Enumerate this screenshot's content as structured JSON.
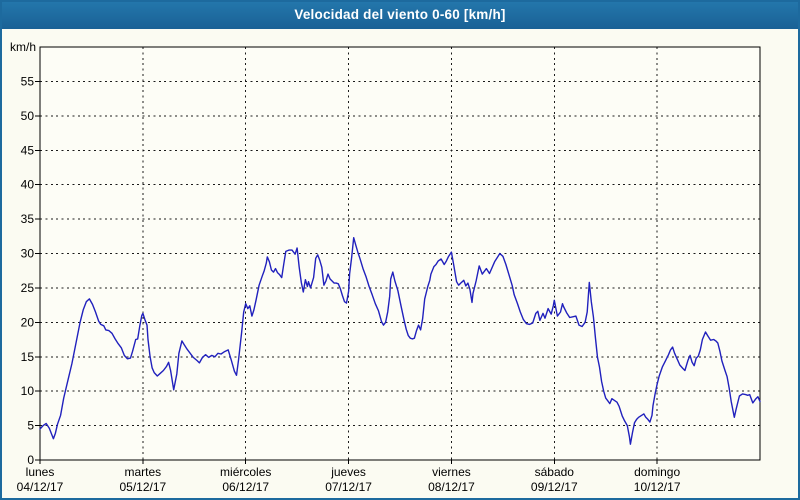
{
  "header": {
    "title": "Velocidad del viento 0-60 [km/h]"
  },
  "colors": {
    "titlebar_bg": "#1d6a9e",
    "titlebar_text": "#ffffff",
    "window_bg": "#fbfbf2",
    "plot_bg": "#fdfdf6",
    "grid": "#1a1a1a",
    "frame": "#000000",
    "label": "#000000",
    "line": "#2121bd"
  },
  "chart_data": {
    "type": "line",
    "title": "Velocidad del viento 0-60 [km/h]",
    "ylabel": "km/h",
    "xlabel": "",
    "ylim": [
      0,
      60
    ],
    "xlim_days": [
      0,
      7
    ],
    "grid": "dashed",
    "legend": "none",
    "y_ticks": [
      0,
      5,
      10,
      15,
      20,
      25,
      30,
      35,
      40,
      45,
      50,
      55
    ],
    "x_ticks": [
      {
        "day": "lunes",
        "date": "04/12/17"
      },
      {
        "day": "martes",
        "date": "05/12/17"
      },
      {
        "day": "miércoles",
        "date": "06/12/17"
      },
      {
        "day": "jueves",
        "date": "07/12/17"
      },
      {
        "day": "viernes",
        "date": "08/12/17"
      },
      {
        "day": "sábado",
        "date": "09/12/17"
      },
      {
        "day": "domingo",
        "date": "10/12/17"
      }
    ],
    "series": [
      {
        "name": "velocidad del viento (km/h)",
        "points": [
          [
            0,
            4.5
          ],
          [
            0.03,
            5.0
          ],
          [
            0.06,
            5.3
          ],
          [
            0.09,
            4.6
          ],
          [
            0.13,
            3.1
          ],
          [
            0.15,
            3.9
          ],
          [
            0.17,
            5.2
          ],
          [
            0.2,
            6.5
          ],
          [
            0.23,
            9.0
          ],
          [
            0.27,
            11.5
          ],
          [
            0.31,
            14.0
          ],
          [
            0.35,
            17.0
          ],
          [
            0.39,
            20.0
          ],
          [
            0.42,
            21.8
          ],
          [
            0.45,
            23.0
          ],
          [
            0.48,
            23.4
          ],
          [
            0.51,
            22.6
          ],
          [
            0.54,
            21.5
          ],
          [
            0.57,
            20.2
          ],
          [
            0.59,
            19.7
          ],
          [
            0.62,
            19.5
          ],
          [
            0.64,
            18.9
          ],
          [
            0.67,
            18.8
          ],
          [
            0.7,
            18.4
          ],
          [
            0.73,
            17.6
          ],
          [
            0.76,
            16.9
          ],
          [
            0.79,
            16.3
          ],
          [
            0.82,
            15.2
          ],
          [
            0.85,
            14.7
          ],
          [
            0.88,
            14.8
          ],
          [
            0.9,
            15.8
          ],
          [
            0.93,
            17.5
          ],
          [
            0.95,
            17.6
          ],
          [
            0.97,
            19.5
          ],
          [
            0.99,
            21.0
          ],
          [
            1.0,
            21.3
          ],
          [
            1.02,
            20.4
          ],
          [
            1.04,
            19.6
          ],
          [
            1.05,
            17.5
          ],
          [
            1.07,
            15.0
          ],
          [
            1.09,
            13.4
          ],
          [
            1.11,
            12.7
          ],
          [
            1.14,
            12.2
          ],
          [
            1.17,
            12.6
          ],
          [
            1.2,
            13.0
          ],
          [
            1.23,
            13.6
          ],
          [
            1.25,
            14.2
          ],
          [
            1.27,
            13.0
          ],
          [
            1.3,
            10.2
          ],
          [
            1.33,
            12.5
          ],
          [
            1.35,
            15.5
          ],
          [
            1.38,
            17.3
          ],
          [
            1.4,
            16.8
          ],
          [
            1.43,
            16.1
          ],
          [
            1.46,
            15.5
          ],
          [
            1.49,
            14.9
          ],
          [
            1.53,
            14.4
          ],
          [
            1.55,
            14.1
          ],
          [
            1.58,
            14.9
          ],
          [
            1.61,
            15.3
          ],
          [
            1.64,
            14.9
          ],
          [
            1.67,
            15.2
          ],
          [
            1.7,
            15.0
          ],
          [
            1.73,
            15.5
          ],
          [
            1.76,
            15.4
          ],
          [
            1.79,
            15.7
          ],
          [
            1.83,
            16.0
          ],
          [
            1.86,
            14.5
          ],
          [
            1.89,
            12.9
          ],
          [
            1.91,
            12.3
          ],
          [
            1.93,
            14.5
          ],
          [
            1.96,
            18.5
          ],
          [
            1.98,
            21.5
          ],
          [
            2.0,
            22.7
          ],
          [
            2.02,
            22.0
          ],
          [
            2.04,
            22.4
          ],
          [
            2.06,
            20.9
          ],
          [
            2.08,
            21.8
          ],
          [
            2.1,
            23.2
          ],
          [
            2.13,
            25.4
          ],
          [
            2.16,
            26.7
          ],
          [
            2.18,
            27.5
          ],
          [
            2.2,
            28.6
          ],
          [
            2.21,
            29.5
          ],
          [
            2.23,
            28.8
          ],
          [
            2.25,
            27.6
          ],
          [
            2.27,
            27.3
          ],
          [
            2.29,
            27.8
          ],
          [
            2.31,
            27.2
          ],
          [
            2.33,
            26.9
          ],
          [
            2.35,
            26.5
          ],
          [
            2.37,
            28.5
          ],
          [
            2.39,
            30.3
          ],
          [
            2.42,
            30.5
          ],
          [
            2.45,
            30.5
          ],
          [
            2.47,
            30.1
          ],
          [
            2.48,
            29.9
          ],
          [
            2.5,
            30.8
          ],
          [
            2.52,
            28.0
          ],
          [
            2.54,
            25.8
          ],
          [
            2.56,
            24.4
          ],
          [
            2.58,
            26.2
          ],
          [
            2.6,
            25.2
          ],
          [
            2.61,
            25.9
          ],
          [
            2.63,
            25.0
          ],
          [
            2.66,
            26.5
          ],
          [
            2.68,
            29.3
          ],
          [
            2.7,
            29.8
          ],
          [
            2.72,
            29.0
          ],
          [
            2.74,
            28.0
          ],
          [
            2.76,
            25.4
          ],
          [
            2.78,
            26.0
          ],
          [
            2.8,
            27.0
          ],
          [
            2.82,
            26.3
          ],
          [
            2.84,
            26.0
          ],
          [
            2.86,
            25.7
          ],
          [
            2.88,
            25.7
          ],
          [
            2.9,
            25.6
          ],
          [
            2.92,
            24.9
          ],
          [
            2.94,
            23.9
          ],
          [
            2.96,
            23.0
          ],
          [
            2.98,
            22.8
          ],
          [
            3.0,
            24.5
          ],
          [
            3.01,
            27.0
          ],
          [
            3.03,
            29.5
          ],
          [
            3.05,
            32.3
          ],
          [
            3.07,
            31.2
          ],
          [
            3.09,
            30.2
          ],
          [
            3.11,
            29.3
          ],
          [
            3.14,
            27.8
          ],
          [
            3.17,
            26.6
          ],
          [
            3.2,
            25.2
          ],
          [
            3.23,
            24.0
          ],
          [
            3.26,
            22.7
          ],
          [
            3.29,
            21.7
          ],
          [
            3.32,
            20.1
          ],
          [
            3.34,
            19.6
          ],
          [
            3.36,
            20.0
          ],
          [
            3.38,
            21.5
          ],
          [
            3.4,
            23.8
          ],
          [
            3.41,
            26.3
          ],
          [
            3.43,
            27.3
          ],
          [
            3.45,
            26.0
          ],
          [
            3.48,
            24.6
          ],
          [
            3.51,
            22.4
          ],
          [
            3.54,
            20.3
          ],
          [
            3.56,
            19.0
          ],
          [
            3.58,
            18.1
          ],
          [
            3.6,
            17.7
          ],
          [
            3.62,
            17.6
          ],
          [
            3.64,
            17.7
          ],
          [
            3.66,
            18.8
          ],
          [
            3.68,
            19.6
          ],
          [
            3.7,
            18.9
          ],
          [
            3.72,
            20.5
          ],
          [
            3.74,
            23.4
          ],
          [
            3.77,
            25.2
          ],
          [
            3.79,
            26.1
          ],
          [
            3.8,
            27.0
          ],
          [
            3.83,
            28.1
          ],
          [
            3.85,
            28.4
          ],
          [
            3.87,
            28.9
          ],
          [
            3.9,
            29.2
          ],
          [
            3.93,
            28.4
          ],
          [
            3.95,
            28.9
          ],
          [
            3.97,
            29.5
          ],
          [
            4.0,
            30.2
          ],
          [
            4.02,
            28.5
          ],
          [
            4.05,
            25.9
          ],
          [
            4.07,
            25.4
          ],
          [
            4.09,
            25.7
          ],
          [
            4.12,
            26.1
          ],
          [
            4.14,
            25.3
          ],
          [
            4.16,
            25.7
          ],
          [
            4.18,
            24.8
          ],
          [
            4.2,
            22.9
          ],
          [
            4.21,
            24.2
          ],
          [
            4.24,
            26.0
          ],
          [
            4.27,
            28.2
          ],
          [
            4.3,
            27.0
          ],
          [
            4.34,
            27.8
          ],
          [
            4.37,
            27.1
          ],
          [
            4.42,
            28.8
          ],
          [
            4.45,
            29.5
          ],
          [
            4.47,
            30.0
          ],
          [
            4.5,
            29.6
          ],
          [
            4.53,
            28.4
          ],
          [
            4.56,
            26.9
          ],
          [
            4.59,
            25.4
          ],
          [
            4.61,
            24.0
          ],
          [
            4.64,
            22.8
          ],
          [
            4.67,
            21.5
          ],
          [
            4.7,
            20.4
          ],
          [
            4.73,
            19.8
          ],
          [
            4.76,
            19.7
          ],
          [
            4.79,
            19.9
          ],
          [
            4.82,
            21.3
          ],
          [
            4.84,
            21.6
          ],
          [
            4.86,
            20.3
          ],
          [
            4.89,
            21.3
          ],
          [
            4.91,
            20.6
          ],
          [
            4.94,
            22.0
          ],
          [
            4.97,
            21.2
          ],
          [
            4.99,
            22.4
          ],
          [
            5.0,
            23.2
          ],
          [
            5.03,
            20.9
          ],
          [
            5.06,
            21.5
          ],
          [
            5.08,
            22.7
          ],
          [
            5.09,
            22.3
          ],
          [
            5.12,
            21.4
          ],
          [
            5.15,
            20.7
          ],
          [
            5.18,
            20.8
          ],
          [
            5.21,
            20.9
          ],
          [
            5.24,
            19.6
          ],
          [
            5.27,
            19.4
          ],
          [
            5.3,
            20.0
          ],
          [
            5.32,
            21.5
          ],
          [
            5.34,
            25.8
          ],
          [
            5.36,
            23.0
          ],
          [
            5.38,
            20.8
          ],
          [
            5.4,
            17.8
          ],
          [
            5.42,
            14.9
          ],
          [
            5.44,
            13.5
          ],
          [
            5.46,
            11.4
          ],
          [
            5.48,
            10.0
          ],
          [
            5.5,
            9.0
          ],
          [
            5.52,
            8.6
          ],
          [
            5.54,
            8.2
          ],
          [
            5.56,
            8.9
          ],
          [
            5.58,
            8.7
          ],
          [
            5.61,
            8.4
          ],
          [
            5.63,
            7.8
          ],
          [
            5.66,
            6.4
          ],
          [
            5.68,
            5.8
          ],
          [
            5.71,
            5.0
          ],
          [
            5.73,
            3.4
          ],
          [
            5.74,
            2.3
          ],
          [
            5.76,
            4.0
          ],
          [
            5.78,
            5.4
          ],
          [
            5.8,
            5.9
          ],
          [
            5.82,
            6.2
          ],
          [
            5.85,
            6.5
          ],
          [
            5.87,
            6.7
          ],
          [
            5.89,
            6.2
          ],
          [
            5.91,
            5.9
          ],
          [
            5.93,
            5.5
          ],
          [
            5.95,
            6.5
          ],
          [
            5.96,
            7.9
          ],
          [
            5.98,
            9.6
          ],
          [
            6.0,
            11.0
          ],
          [
            6.02,
            12.2
          ],
          [
            6.05,
            13.5
          ],
          [
            6.08,
            14.4
          ],
          [
            6.11,
            15.3
          ],
          [
            6.13,
            16.0
          ],
          [
            6.15,
            16.4
          ],
          [
            6.17,
            15.5
          ],
          [
            6.2,
            14.5
          ],
          [
            6.22,
            13.8
          ],
          [
            6.25,
            13.3
          ],
          [
            6.27,
            13.0
          ],
          [
            6.3,
            14.5
          ],
          [
            6.32,
            15.2
          ],
          [
            6.34,
            14.2
          ],
          [
            6.36,
            13.7
          ],
          [
            6.38,
            14.8
          ],
          [
            6.4,
            15.1
          ],
          [
            6.42,
            16.0
          ],
          [
            6.44,
            17.5
          ],
          [
            6.47,
            18.6
          ],
          [
            6.49,
            18.1
          ],
          [
            6.52,
            17.4
          ],
          [
            6.55,
            17.5
          ],
          [
            6.57,
            17.3
          ],
          [
            6.59,
            17.0
          ],
          [
            6.61,
            15.8
          ],
          [
            6.63,
            14.4
          ],
          [
            6.66,
            13.0
          ],
          [
            6.68,
            12.1
          ],
          [
            6.7,
            10.5
          ],
          [
            6.72,
            8.5
          ],
          [
            6.75,
            6.2
          ],
          [
            6.77,
            7.5
          ],
          [
            6.8,
            9.3
          ],
          [
            6.83,
            9.6
          ],
          [
            6.86,
            9.5
          ],
          [
            6.88,
            9.4
          ],
          [
            6.9,
            9.5
          ],
          [
            6.93,
            8.3
          ],
          [
            6.96,
            8.9
          ],
          [
            6.98,
            9.2
          ],
          [
            7.0,
            8.5
          ]
        ]
      }
    ]
  }
}
